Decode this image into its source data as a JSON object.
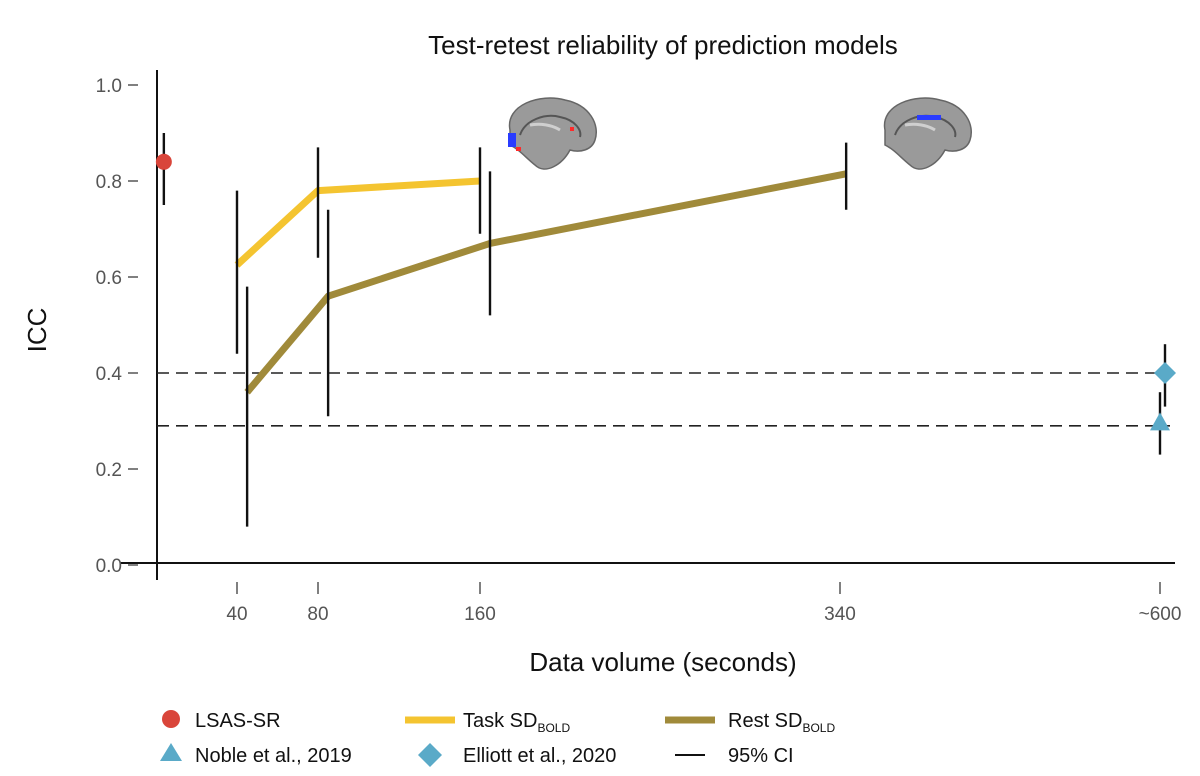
{
  "chart_data": {
    "type": "line",
    "title": "Test-retest reliability of prediction models",
    "xlabel": "Data volume (seconds)",
    "ylabel": "ICC",
    "x_ticks": [
      {
        "value": 40,
        "label": "40"
      },
      {
        "value": 80,
        "label": "80"
      },
      {
        "value": 160,
        "label": "160"
      },
      {
        "value": 340,
        "label": "340"
      },
      {
        "value": 600,
        "label": "~600"
      }
    ],
    "y_ticks": [
      {
        "value": 0.0,
        "label": "0.0"
      },
      {
        "value": 0.2,
        "label": "0.2"
      },
      {
        "value": 0.4,
        "label": "0.4"
      },
      {
        "value": 0.6,
        "label": "0.6"
      },
      {
        "value": 0.8,
        "label": "0.8"
      },
      {
        "value": 1.0,
        "label": "1.0"
      }
    ],
    "ylim": [
      0.0,
      1.0
    ],
    "reference_lines": [
      0.4,
      0.29
    ],
    "series": [
      {
        "name": "Task SD",
        "name_sub": "BOLD",
        "color": "#f4c430",
        "points": [
          {
            "x": 40,
            "y": 0.625,
            "ci": [
              0.44,
              0.78
            ]
          },
          {
            "x": 80,
            "y": 0.78,
            "ci": [
              0.64,
              0.87
            ]
          },
          {
            "x": 160,
            "y": 0.8,
            "ci": [
              0.69,
              0.87
            ]
          }
        ]
      },
      {
        "name": "Rest SD",
        "name_sub": "BOLD",
        "color": "#a08a3a",
        "points": [
          {
            "x": 45,
            "y": 0.36,
            "ci": [
              0.08,
              0.58
            ]
          },
          {
            "x": 85,
            "y": 0.56,
            "ci": [
              0.31,
              0.74
            ]
          },
          {
            "x": 165,
            "y": 0.67,
            "ci": [
              0.52,
              0.82
            ]
          },
          {
            "x": 345,
            "y": 0.815,
            "ci": [
              0.74,
              0.88
            ]
          }
        ]
      }
    ],
    "markers": [
      {
        "name": "LSAS-SR",
        "shape": "circle",
        "color": "#d9453a",
        "x": 2,
        "y": 0.84,
        "ci": [
          0.75,
          0.9
        ]
      },
      {
        "name": "Noble et al., 2019",
        "shape": "triangle",
        "color": "#5aaac8",
        "x": 600,
        "y": 0.295,
        "ci": [
          0.23,
          0.36
        ]
      },
      {
        "name": "Elliott et al., 2020",
        "shape": "diamond",
        "color": "#5aaac8",
        "x": 605,
        "y": 0.4,
        "ci": [
          0.33,
          0.46
        ]
      }
    ],
    "legend": [
      {
        "label": "LSAS-SR",
        "sub": "",
        "symbol": "circle",
        "color": "#d9453a"
      },
      {
        "label": "Noble et al., 2019",
        "sub": "",
        "symbol": "triangle",
        "color": "#5aaac8"
      },
      {
        "label": "Task SD",
        "sub": "BOLD",
        "symbol": "line",
        "color": "#f4c430"
      },
      {
        "label": "Elliott et al., 2020",
        "sub": "",
        "symbol": "diamond",
        "color": "#5aaac8"
      },
      {
        "label": "Rest SD",
        "sub": "BOLD",
        "symbol": "line",
        "color": "#a08a3a"
      },
      {
        "label": "95% CI",
        "sub": "",
        "symbol": "thin-line",
        "color": "#111111"
      }
    ],
    "legend_position": "bottom"
  }
}
